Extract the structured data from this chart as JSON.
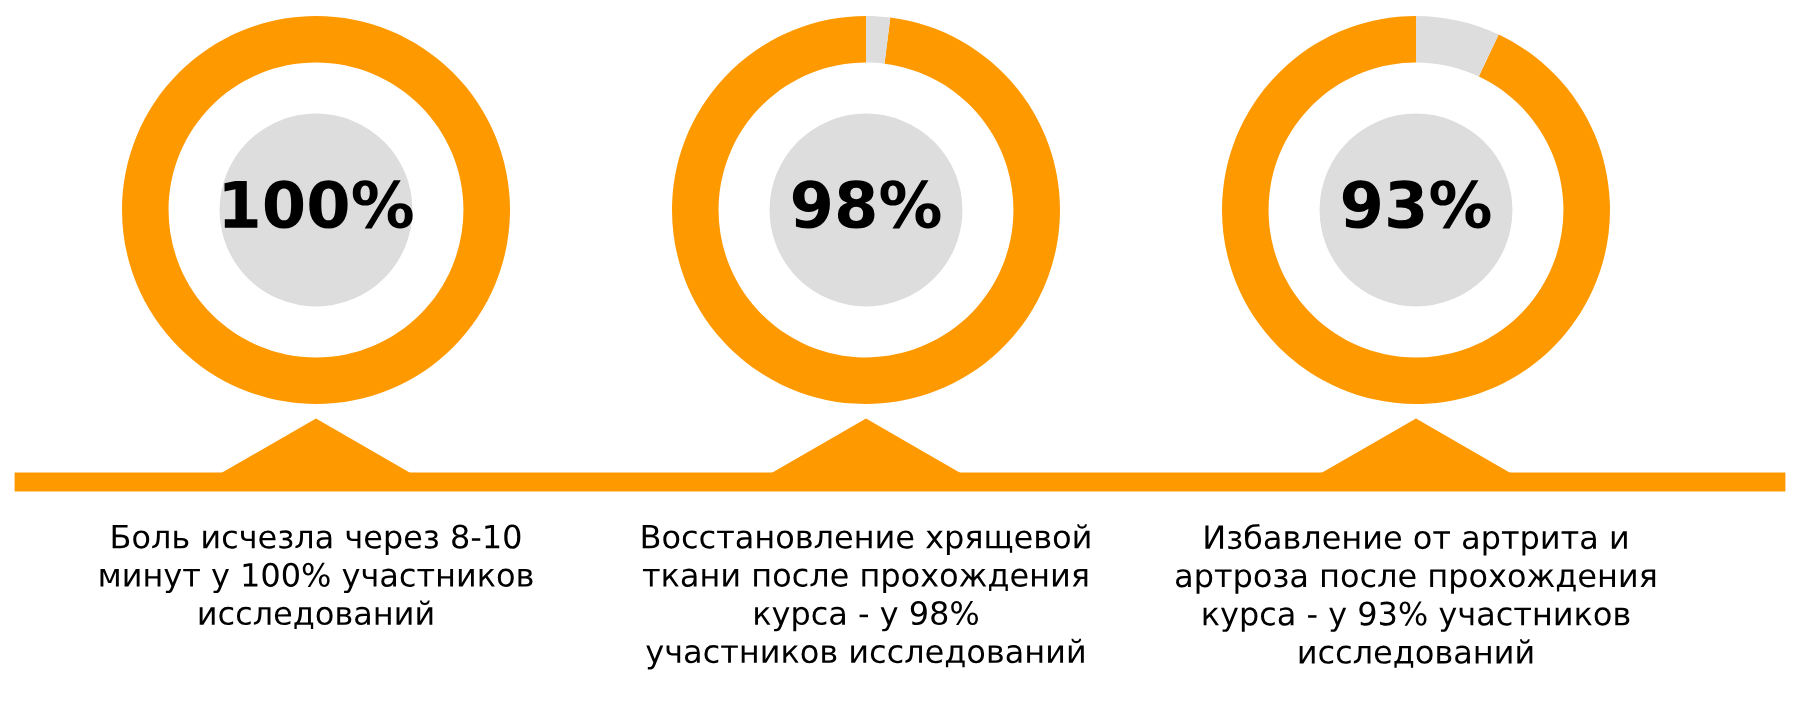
{
  "chart_data": [
    {
      "type": "donut",
      "categories": [
        null,
        null
      ],
      "values": [
        100,
        0
      ],
      "colors": [
        "#ff9900",
        "#dddddd"
      ],
      "value_labels": [
        "100%",
        null
      ],
      "annotations": [
        "Боль исчезла через 8-10\nминут у 100% участников\nисследований"
      ]
    },
    {
      "type": "donut",
      "categories": [
        null,
        null
      ],
      "values": [
        98,
        2
      ],
      "colors": [
        "#ff9900",
        "#dddddd"
      ],
      "value_labels": [
        "98%",
        null
      ],
      "annotations": [
        "Восстановление хрящевой\nткани после прохождения\nкурса - у 98%\nучастников исследований"
      ]
    },
    {
      "type": "donut",
      "categories": [
        null,
        null
      ],
      "values": [
        93,
        7
      ],
      "colors": [
        "#ff9900",
        "#dddddd"
      ],
      "value_labels": [
        "93%",
        null
      ],
      "annotations": [
        "Избавление от артрита и\nартроза после прохождения\nкурса - у 93% участников\nисследований"
      ]
    }
  ]
}
